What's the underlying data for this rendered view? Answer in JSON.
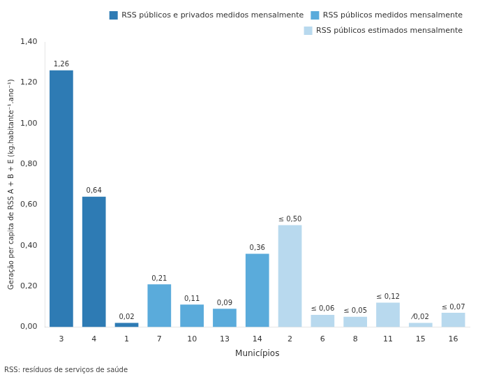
{
  "chart_data": {
    "type": "bar",
    "categories": [
      "3",
      "4",
      "1",
      "7",
      "10",
      "13",
      "14",
      "2",
      "6",
      "8",
      "11",
      "15",
      "16"
    ],
    "series": [
      {
        "name": "RSS públicos e privados medidos mensalmente",
        "color": "#2e7bb4",
        "values": [
          1.26,
          0.64,
          0.02,
          null,
          null,
          null,
          null,
          null,
          null,
          null,
          null,
          null,
          null
        ],
        "value_labels": [
          "1,26",
          "0,64",
          "0,02",
          null,
          null,
          null,
          null,
          null,
          null,
          null,
          null,
          null,
          null
        ]
      },
      {
        "name": "RSS públicos medidos mensalmente",
        "color": "#5aabdb",
        "values": [
          null,
          null,
          null,
          0.21,
          0.11,
          0.09,
          0.36,
          null,
          null,
          null,
          null,
          null,
          null
        ],
        "value_labels": [
          null,
          null,
          null,
          "0,21",
          "0,11",
          "0,09",
          "0,36",
          null,
          null,
          null,
          null,
          null,
          null
        ]
      },
      {
        "name": "RSS públicos estimados mensalmente",
        "color": "#b8d9ee",
        "values": [
          null,
          null,
          null,
          null,
          null,
          null,
          null,
          0.5,
          0.06,
          0.05,
          0.12,
          0.02,
          0.07
        ],
        "value_labels": [
          null,
          null,
          null,
          null,
          null,
          null,
          null,
          "≤ 0,50",
          "≤ 0,06",
          "≤ 0,05",
          "≤ 0,12",
          "⁄0,02",
          "≤ 0,07"
        ]
      }
    ],
    "xlabel": "Municípios",
    "ylabel": "Geração per capita de RSS A + B + E (kg.habitante⁻¹.ano⁻¹)",
    "annotations": [
      "RSS: resíduos de serviços de saúde"
    ],
    "ylim": [
      0,
      1.4
    ],
    "yticks": [
      {
        "value": 0.0,
        "label": "0,00"
      },
      {
        "value": 0.2,
        "label": "0,20"
      },
      {
        "value": 0.4,
        "label": "0,40"
      },
      {
        "value": 0.6,
        "label": "0,60"
      },
      {
        "value": 0.8,
        "label": "0,80"
      },
      {
        "value": 1.0,
        "label": "1,00"
      },
      {
        "value": 1.2,
        "label": "1,20"
      },
      {
        "value": 1.4,
        "label": "1,40"
      }
    ],
    "grid": false,
    "legend": "upper right",
    "data_labels": true
  }
}
